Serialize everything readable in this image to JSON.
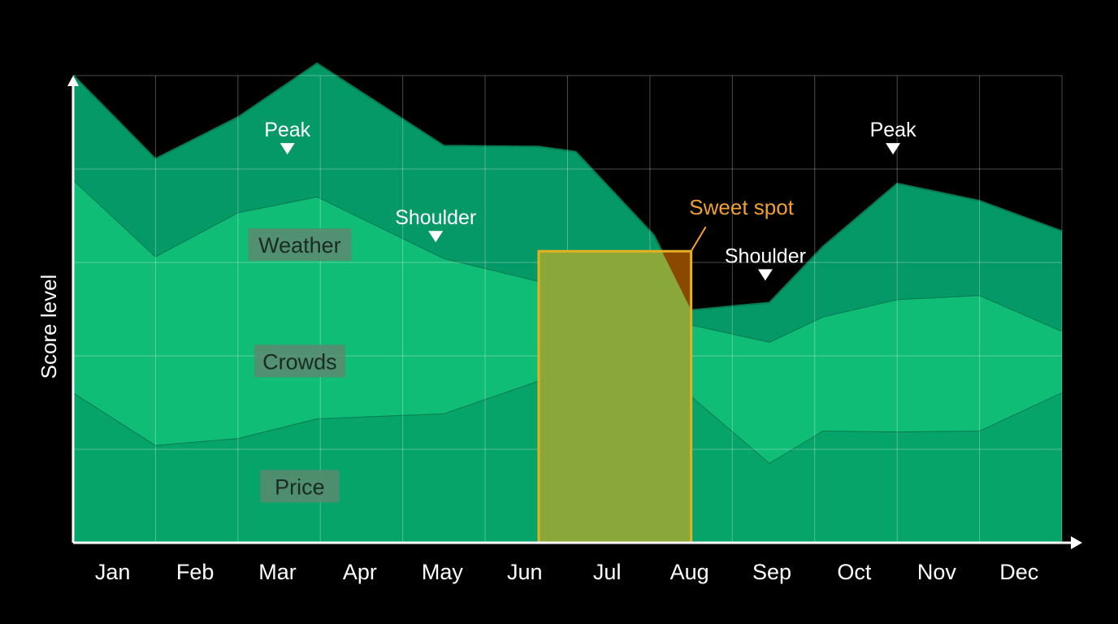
{
  "chart_data": {
    "type": "area",
    "title": "",
    "xlabel": "",
    "ylabel": "Score level",
    "ylim": [
      0,
      100
    ],
    "grid": true,
    "legend": "inline labels",
    "categories": [
      "Jan",
      "Feb",
      "Mar",
      "Apr",
      "May",
      "Jun",
      "Jul",
      "Aug",
      "Sep",
      "Oct",
      "Nov",
      "Dec"
    ],
    "x": [
      0,
      1,
      2,
      2.96,
      4.5,
      5.65,
      6.1,
      7.05,
      7.5,
      8.45,
      9.1,
      10,
      11,
      12
    ],
    "series": [
      {
        "name": "Price",
        "color": "#07a46a",
        "values": [
          32.2,
          20.9,
          22.4,
          26.6,
          27.7,
          34.7,
          36.6,
          34.7,
          31.4,
          17.1,
          24.0,
          23.8,
          24.0,
          32.2
        ]
      },
      {
        "name": "Crowds",
        "color": "#10bd77",
        "values": [
          45.5,
          40.4,
          48.3,
          47.5,
          33.2,
          21.3,
          19.3,
          9.5,
          15.3,
          25.9,
          24.4,
          28.3,
          29.0,
          13.1
        ]
      },
      {
        "name": "Weather",
        "color": "#049966",
        "values": [
          22.4,
          20.9,
          20.4,
          28.5,
          24.1,
          28.8,
          27.8,
          21.6,
          3.1,
          8.4,
          15.0,
          24.8,
          20.2,
          21.4
        ]
      }
    ],
    "annotations": [
      {
        "text": "Peak",
        "x": 2.6,
        "y": 84.5,
        "color": "#ffffff",
        "marker": "down-triangle"
      },
      {
        "text": "Shoulder",
        "x": 4.4,
        "y": 65.7,
        "color": "#ffffff",
        "marker": "down-triangle"
      },
      {
        "text": "Shoulder",
        "x": 8.4,
        "y": 57.5,
        "color": "#ffffff",
        "marker": "down-triangle"
      },
      {
        "text": "Peak",
        "x": 9.95,
        "y": 84.5,
        "color": "#ffffff",
        "marker": "down-triangle"
      }
    ],
    "highlight": {
      "text": "Sweet spot",
      "x0": 5.65,
      "x1": 7.5,
      "y0": 0,
      "y1": 62.4,
      "color": "#f0a030"
    },
    "series_labels": [
      {
        "text": "Weather",
        "x": 2.75,
        "y": 63.8
      },
      {
        "text": "Crowds",
        "x": 2.75,
        "y": 38.9
      },
      {
        "text": "Price",
        "x": 2.75,
        "y": 12.1
      }
    ]
  }
}
